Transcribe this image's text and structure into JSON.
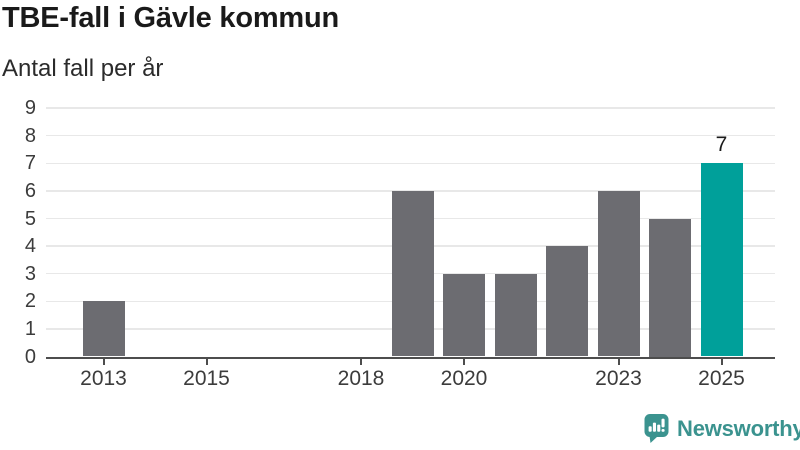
{
  "title": "TBE-fall i Gävle kommun",
  "subtitle": "Antal fall per år",
  "chart_data": {
    "type": "bar",
    "title": "TBE-fall i Gävle kommun",
    "subtitle": "Antal fall per år",
    "categories": [
      2013,
      2014,
      2015,
      2016,
      2017,
      2018,
      2019,
      2020,
      2021,
      2022,
      2023,
      2024,
      2025
    ],
    "values": [
      2,
      0,
      0,
      0,
      0,
      0,
      6,
      3,
      3,
      4,
      6,
      5,
      7
    ],
    "xticks": [
      2013,
      2015,
      2018,
      2020,
      2023,
      2025
    ],
    "yticks": [
      0,
      1,
      2,
      3,
      4,
      5,
      6,
      7,
      8,
      9
    ],
    "ylim": [
      0,
      9
    ],
    "grid": true,
    "legend_position": "none",
    "highlight_year": 2025,
    "value_label": {
      "year": 2025,
      "text": "7"
    },
    "colors": {
      "bar": "#6c6c71",
      "highlight": "#00a09a",
      "axis": "#4d4d4d",
      "grid": "#e8e8e8",
      "tick_label": "#3c3c3c",
      "value_label": "#1a1a1a"
    }
  },
  "footer": {
    "brand": "Newsworthy",
    "brand_color": "#3b938f"
  }
}
